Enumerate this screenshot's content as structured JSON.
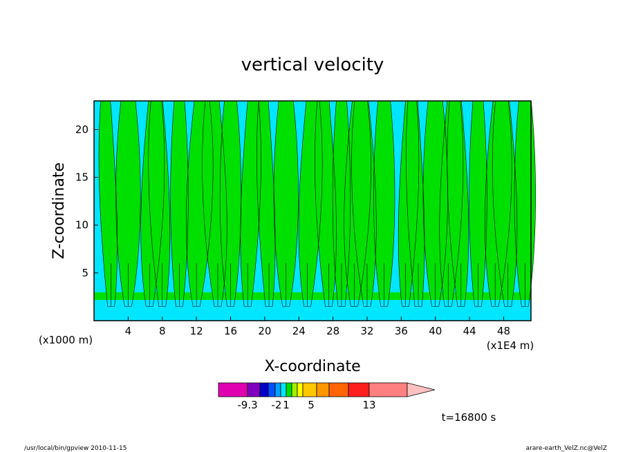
{
  "chart_data": {
    "type": "heatmap",
    "title": "vertical velocity",
    "xlabel": "X-coordinate",
    "ylabel": "Z-coordinate",
    "x_unit_left": "(x1000 m)",
    "x_unit_right": "(x1E4 m)",
    "xlim": [
      0,
      51.2
    ],
    "ylim": [
      0,
      23
    ],
    "x_ticks": [
      "4",
      "8",
      "12",
      "16",
      "20",
      "24",
      "28",
      "32",
      "36",
      "40",
      "44",
      "48"
    ],
    "y_ticks": [
      "5",
      "10",
      "15",
      "20"
    ],
    "grid": false,
    "colorbar": {
      "colors": [
        "#e000b0",
        "#8000c0",
        "#0000c8",
        "#0050ff",
        "#00a0ff",
        "#00e6ff",
        "#00e000",
        "#a0f000",
        "#ffff00",
        "#ffc800",
        "#ff9600",
        "#ff6400",
        "#ff1e1e",
        "#ff8080",
        "#ffc0c0",
        "#ffc0c0"
      ],
      "tick_labels": [
        "-9.3",
        "-2",
        "1",
        "5",
        "13"
      ]
    },
    "field_colors": {
      "negative": "#00e6ff",
      "positive": "#00e000"
    },
    "time_label": "t=16800 s"
  },
  "footer": {
    "left": "/usr/local/bin/gpview  2010-11-15",
    "right": "arare-earth_VelZ.nc@VelZ"
  }
}
